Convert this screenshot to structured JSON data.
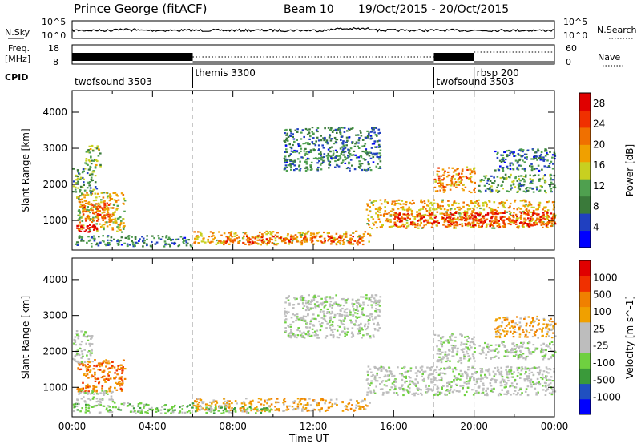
{
  "header": {
    "title": "Prince George (fitACF)",
    "beam": "Beam 10",
    "dates": "19/Oct/2015 - 20/Oct/2015"
  },
  "side_labels": {
    "nsky": "N.Sky",
    "freq_line1": "Freq.",
    "freq_line2": "[MHz]",
    "cpid": "CPID",
    "nsearch": "N.Search",
    "nave": "Nave"
  },
  "noise_axis": {
    "left_top": "10^5",
    "left_bottom": "10^0",
    "right_top": "10^5",
    "right_bottom": "10^0"
  },
  "freq_axis": {
    "left_top": "18",
    "left_bottom": "8",
    "right_top": "60",
    "right_bottom": "0"
  },
  "cpid_segments": [
    {
      "label": "twofsound 3503",
      "start_hour": 0
    },
    {
      "label": "themis 3300",
      "start_hour": 6
    },
    {
      "label": "twofsound 3503",
      "start_hour": 18
    },
    {
      "label": "rbsp 200",
      "start_hour": 20
    }
  ],
  "colors": {
    "power": [
      "#0000ff",
      "#2040c0",
      "#3a7a3a",
      "#4fa04f",
      "#c8d020",
      "#f0a000",
      "#f07000",
      "#f03000",
      "#e00000"
    ],
    "velocity": [
      "#e00000",
      "#f03000",
      "#f08000",
      "#f0a000",
      "#bdbdbd",
      "#bdbdbd",
      "#6fd040",
      "#3a9a3a",
      "#2050c0",
      "#0000ff"
    ],
    "ground_scatter": "#bdbdbd"
  },
  "chart_data": [
    {
      "type": "heatmap",
      "panel": "power",
      "ylabel": "Slant Range [km]",
      "ylim": [
        180,
        4600
      ],
      "yticks": [
        "1000",
        "2000",
        "3000",
        "4000"
      ],
      "xlim_hours": [
        0,
        24
      ],
      "colorbar": {
        "label": "Power [dB]",
        "range": [
          0,
          30
        ],
        "ticks": [
          "4",
          "8",
          "12",
          "16",
          "20",
          "24",
          "28"
        ]
      },
      "scatter_regions": [
        {
          "t0": 0.2,
          "t1": 2.6,
          "r0": 700,
          "r1": 1800,
          "level": 16
        },
        {
          "t0": 0.4,
          "t1": 2.0,
          "r0": 1000,
          "r1": 1500,
          "level": 22
        },
        {
          "t0": 0.2,
          "t1": 1.2,
          "r0": 700,
          "r1": 900,
          "level": 26
        },
        {
          "t0": 0.0,
          "t1": 1.2,
          "r0": 1800,
          "r1": 2500,
          "level": 10
        },
        {
          "t0": 0.6,
          "t1": 1.4,
          "r0": 2500,
          "r1": 3100,
          "level": 12
        },
        {
          "t0": 0.0,
          "t1": 6.0,
          "r0": 300,
          "r1": 600,
          "level": 8
        },
        {
          "t0": 6.0,
          "t1": 14.8,
          "r0": 350,
          "r1": 720,
          "level": 18
        },
        {
          "t0": 7.5,
          "t1": 14.5,
          "r0": 400,
          "r1": 600,
          "level": 24
        },
        {
          "t0": 10.5,
          "t1": 15.3,
          "r0": 2400,
          "r1": 3600,
          "level": 8
        },
        {
          "t0": 14.6,
          "t1": 24.0,
          "r0": 800,
          "r1": 1600,
          "level": 18
        },
        {
          "t0": 16.0,
          "t1": 24.0,
          "r0": 850,
          "r1": 1250,
          "level": 26
        },
        {
          "t0": 18.0,
          "t1": 20.0,
          "r0": 1800,
          "r1": 2500,
          "level": 20
        },
        {
          "t0": 20.2,
          "t1": 24.0,
          "r0": 1800,
          "r1": 2300,
          "level": 10
        },
        {
          "t0": 21.0,
          "t1": 24.0,
          "r0": 2400,
          "r1": 3000,
          "level": 8
        }
      ]
    },
    {
      "type": "heatmap",
      "panel": "velocity",
      "ylabel": "Slant Range [km]",
      "xlabel": "Time UT",
      "ylim": [
        180,
        4600
      ],
      "yticks": [
        "1000",
        "2000",
        "3000",
        "4000"
      ],
      "xlim_hours": [
        0,
        24
      ],
      "xticks": [
        "00:00",
        "04:00",
        "08:00",
        "12:00",
        "16:00",
        "20:00",
        "00:00"
      ],
      "colorbar": {
        "label": "Velocity [m s^-1]",
        "ticks": [
          "1000",
          "500",
          "100",
          "25",
          "-25",
          "-100",
          "-500",
          "-1000"
        ]
      },
      "scatter_regions": [
        {
          "t0": 0.2,
          "t1": 2.6,
          "r0": 900,
          "r1": 1800,
          "level": 2
        },
        {
          "t0": 0.0,
          "t1": 1.0,
          "r0": 1700,
          "r1": 2600,
          "level": 5
        },
        {
          "t0": 0.2,
          "t1": 2.0,
          "r0": 600,
          "r1": 950,
          "level": 5
        },
        {
          "t0": 0.0,
          "t1": 6.0,
          "r0": 300,
          "r1": 600,
          "level": 6
        },
        {
          "t0": 6.0,
          "t1": 14.8,
          "r0": 350,
          "r1": 720,
          "level": 3
        },
        {
          "t0": 6.0,
          "t1": 10.0,
          "r0": 300,
          "r1": 500,
          "level": 6
        },
        {
          "t0": 10.5,
          "t1": 15.3,
          "r0": 2400,
          "r1": 3600,
          "level": 5
        },
        {
          "t0": 14.6,
          "t1": 24.0,
          "r0": 800,
          "r1": 1600,
          "level": 5
        },
        {
          "t0": 18.0,
          "t1": 20.0,
          "r0": 1700,
          "r1": 2500,
          "level": 5
        },
        {
          "t0": 20.2,
          "t1": 24.0,
          "r0": 1800,
          "r1": 2300,
          "level": 5
        },
        {
          "t0": 21.0,
          "t1": 24.0,
          "r0": 2400,
          "r1": 3000,
          "level": 3
        }
      ]
    }
  ]
}
